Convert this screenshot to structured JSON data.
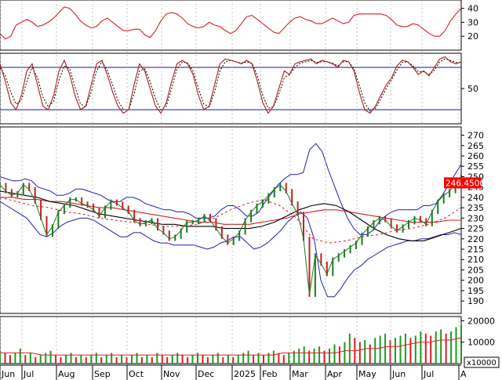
{
  "chart_data": [
    {
      "panel": "adx",
      "type": "line",
      "y_ticks": [
        20,
        30,
        40
      ],
      "ylim": [
        10,
        46
      ],
      "colors": {
        "line": "#d62020"
      },
      "series": [
        {
          "values": [
            22,
            18,
            20,
            28,
            30,
            32,
            30,
            27,
            28,
            30,
            33,
            37,
            41,
            40,
            36,
            31,
            28,
            26,
            27,
            31,
            33,
            30,
            27,
            24,
            24,
            25,
            25,
            21,
            19,
            24,
            31,
            36,
            37,
            36,
            33,
            29,
            27,
            26,
            27,
            30,
            28,
            27,
            24,
            22,
            24,
            29,
            34,
            35,
            32,
            29,
            26,
            23,
            22,
            26,
            30,
            33,
            34,
            32,
            31,
            29,
            29,
            31,
            33,
            31,
            29,
            30,
            35,
            36,
            36,
            36,
            36,
            36,
            35,
            32,
            28,
            27,
            27,
            29,
            28,
            25,
            22,
            20,
            20,
            24,
            31,
            36,
            40
          ]
        }
      ]
    },
    {
      "panel": "stochastic",
      "type": "line",
      "y_ticks": [
        50
      ],
      "ylim": [
        0,
        100
      ],
      "reference_lines": [
        20,
        80
      ],
      "colors": {
        "k": "#b01818",
        "d": "#000000",
        "ref": "#1a1a8c"
      },
      "series": [
        {
          "values": [
            85,
            60,
            30,
            20,
            40,
            75,
            85,
            55,
            25,
            20,
            40,
            75,
            90,
            70,
            40,
            20,
            25,
            55,
            85,
            90,
            70,
            45,
            25,
            15,
            20,
            55,
            85,
            75,
            50,
            25,
            15,
            30,
            60,
            85,
            90,
            85,
            70,
            40,
            20,
            25,
            55,
            85,
            92,
            90,
            88,
            85,
            90,
            85,
            60,
            30,
            15,
            25,
            50,
            75,
            70,
            85,
            88,
            90,
            92,
            85,
            90,
            88,
            85,
            80,
            90,
            88,
            75,
            45,
            20,
            15,
            25,
            40,
            55,
            65,
            82,
            90,
            88,
            80,
            70,
            75,
            68,
            80,
            92,
            95,
            88,
            85,
            88
          ]
        },
        {
          "values": [
            80,
            68,
            45,
            28,
            33,
            60,
            80,
            65,
            38,
            24,
            32,
            62,
            82,
            78,
            52,
            28,
            24,
            45,
            75,
            88,
            76,
            55,
            33,
            20,
            20,
            42,
            75,
            78,
            60,
            35,
            20,
            25,
            50,
            78,
            88,
            86,
            75,
            50,
            28,
            24,
            45,
            75,
            88,
            90,
            88,
            86,
            88,
            86,
            68,
            40,
            22,
            24,
            42,
            65,
            70,
            80,
            86,
            88,
            90,
            87,
            88,
            88,
            86,
            82,
            88,
            88,
            78,
            55,
            30,
            18,
            22,
            35,
            50,
            62,
            76,
            87,
            88,
            82,
            74,
            74,
            70,
            76,
            88,
            92,
            90,
            87,
            87
          ]
        }
      ]
    },
    {
      "panel": "price",
      "type": "line",
      "y_ticks": [
        190,
        195,
        200,
        205,
        210,
        215,
        220,
        225,
        230,
        235,
        240,
        245,
        250,
        255,
        260,
        265,
        270
      ],
      "ylim": [
        184,
        274
      ],
      "last_price_label": "246.4500",
      "colors": {
        "price": "#1e7a1e",
        "bollinger": "#1f1fb8",
        "ma_red": "#d62020",
        "ma_black": "#000000",
        "ma_dash": "#d62020",
        "label_bg": "#ff0000",
        "label_text": "#ffffff"
      },
      "series": [
        {
          "name": "close",
          "values": [
            246,
            243,
            241,
            242,
            246,
            244,
            238,
            230,
            222,
            226,
            233,
            236,
            239,
            239,
            237,
            236,
            234,
            231,
            235,
            238,
            237,
            235,
            233,
            229,
            227,
            228,
            229,
            225,
            223,
            220,
            221,
            224,
            228,
            228,
            229,
            231,
            229,
            225,
            221,
            218,
            220,
            223,
            229,
            233,
            236,
            238,
            241,
            244,
            246,
            243,
            237,
            232,
            220,
            193,
            212,
            208,
            203,
            210,
            212,
            214,
            216,
            218,
            222,
            225,
            228,
            230,
            229,
            226,
            224,
            226,
            228,
            230,
            229,
            227,
            233,
            238,
            241,
            243,
            247,
            250
          ]
        },
        {
          "name": "bb_upper",
          "values": [
            250,
            249,
            248,
            248,
            249,
            248,
            245,
            244,
            243,
            241,
            241,
            242,
            244,
            244,
            243,
            242,
            241,
            239,
            238,
            238,
            240,
            240,
            239,
            237,
            236,
            235,
            234,
            234,
            233,
            233,
            232,
            230,
            230,
            230,
            231,
            234,
            236,
            236,
            234,
            231,
            231,
            233,
            238,
            242,
            246,
            249,
            251,
            251,
            252,
            263,
            266,
            262,
            253,
            245,
            237,
            230,
            225,
            222,
            222,
            224,
            228,
            231,
            233,
            234,
            234,
            234,
            234,
            236,
            236,
            237,
            241,
            246,
            251,
            256
          ]
        },
        {
          "name": "bb_lower",
          "values": [
            238,
            236,
            234,
            232,
            230,
            226,
            222,
            221,
            223,
            226,
            228,
            229,
            230,
            230,
            229,
            227,
            225,
            223,
            221,
            221,
            223,
            223,
            221,
            219,
            218,
            218,
            217,
            217,
            217,
            217,
            216,
            215,
            216,
            218,
            219,
            221,
            221,
            218,
            215,
            216,
            218,
            221,
            224,
            228,
            231,
            233,
            230,
            220,
            200,
            192,
            192,
            196,
            201,
            205,
            207,
            210,
            212,
            214,
            216,
            217,
            218,
            219,
            219,
            220,
            220,
            221,
            222,
            222,
            223,
            222
          ]
        },
        {
          "name": "ma_red",
          "values": [
            240,
            240,
            239,
            239,
            238,
            238,
            237,
            236,
            235,
            235,
            234,
            233,
            232,
            231,
            230,
            229,
            228,
            228,
            227,
            227,
            227,
            228,
            229,
            230,
            232,
            233,
            234,
            234,
            233,
            232,
            231,
            230,
            229,
            228,
            228,
            228,
            229,
            229
          ]
        },
        {
          "name": "ma_black",
          "values": [
            243,
            242,
            241,
            240,
            238,
            237,
            236,
            234,
            232,
            231,
            230,
            229,
            228,
            227,
            227,
            226,
            226,
            226,
            225,
            225,
            225,
            226,
            228,
            231,
            234,
            236,
            237,
            236,
            233,
            229,
            225,
            222,
            220,
            219,
            219,
            221,
            223,
            225
          ]
        },
        {
          "name": "ma_dash",
          "values": [
            240,
            238,
            236,
            235,
            233,
            232,
            230,
            229,
            228,
            227,
            226,
            226,
            227,
            230,
            234,
            237,
            239,
            236,
            230,
            220,
            218,
            219,
            221,
            222,
            224,
            225,
            227,
            230,
            235
          ]
        }
      ]
    },
    {
      "panel": "volume",
      "type": "bar",
      "y_ticks": [
        10000,
        20000
      ],
      "ylim": [
        0,
        22000
      ],
      "unit_label": "x10000",
      "colors": {
        "up": "#1e9a1e",
        "down": "#d62020",
        "avg": "#d62020"
      },
      "values": [
        6,
        5,
        4,
        5,
        7,
        4,
        5,
        3,
        4,
        5,
        6,
        4,
        3,
        4,
        5,
        3,
        4,
        3,
        4,
        5,
        3,
        4,
        5,
        3,
        4,
        3,
        4,
        5,
        3,
        4,
        3,
        5,
        4,
        3,
        4,
        5,
        4,
        3,
        4,
        5,
        4,
        3,
        4,
        5,
        3,
        4,
        3,
        4,
        5,
        6,
        4,
        5,
        4,
        5,
        6,
        5,
        4,
        5,
        6,
        7,
        8,
        6,
        7,
        8,
        6,
        7,
        9,
        8,
        10,
        14,
        12,
        10,
        11,
        9,
        12,
        13,
        14,
        11,
        12,
        13,
        14,
        12,
        13,
        15,
        14,
        13,
        15,
        16,
        14,
        15,
        17,
        18
      ],
      "avg_values": [
        5,
        5,
        5,
        5,
        4,
        4,
        4,
        4,
        4,
        4,
        4,
        4,
        4,
        4,
        4,
        4,
        4,
        4,
        4,
        4,
        4,
        4,
        4,
        4,
        4,
        4,
        4,
        5,
        5,
        5,
        5,
        5,
        5,
        6,
        6,
        7,
        7,
        8,
        8,
        9,
        10,
        10,
        11,
        11,
        12
      ]
    }
  ],
  "x_axis": {
    "labels": [
      "Jun",
      "Jul",
      "Aug",
      "Sep",
      "Oct",
      "Nov",
      "Dec",
      "2025",
      "Feb",
      "Mar",
      "Apr",
      "May",
      "Jun",
      "Jul",
      "A"
    ]
  }
}
